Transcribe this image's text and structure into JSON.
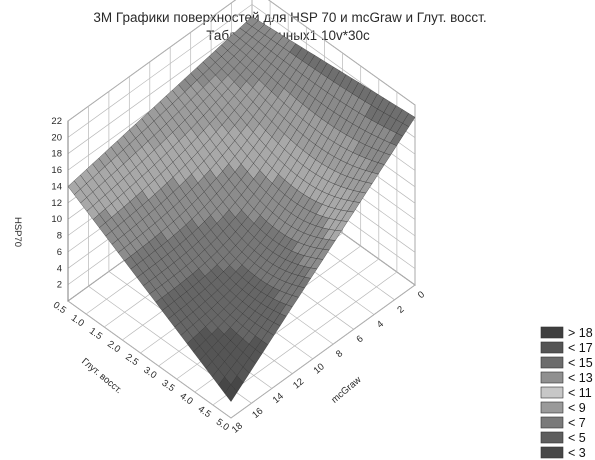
{
  "chart_data": {
    "type": "surface3d",
    "title": "3M Графики поверхностей для HSP 70 и mcGraw и Глут. восст.",
    "subtitle": "Таблица данных1 10v*30c",
    "xlabel": "mcGraw",
    "ylabel": "Глут. восст.",
    "zlabel": "HSP70",
    "x_ticks": [
      "0",
      "2",
      "4",
      "6",
      "8",
      "10",
      "12",
      "14",
      "16",
      "18"
    ],
    "y_ticks": [
      "0.5",
      "1.0",
      "1.5",
      "2.0",
      "2.5",
      "3.0",
      "3.5",
      "4.0",
      "4.5",
      "5.0"
    ],
    "z_ticks": [
      "2",
      "4",
      "6",
      "8",
      "10",
      "12",
      "14",
      "16",
      "18",
      "20",
      "22"
    ],
    "xlim": [
      0,
      18
    ],
    "ylim": [
      0.5,
      5.0
    ],
    "zlim": [
      0,
      22
    ],
    "grid": true,
    "legend_position": "bottom-right",
    "legend": [
      "> 18",
      "< 17",
      "< 15",
      "< 13",
      "< 11",
      "< 9",
      "< 7",
      "< 5",
      "< 3"
    ],
    "legend_colors": [
      "#3f3f3f",
      "#555555",
      "#6c6c6c",
      "#909090",
      "#c7c7c7",
      "#9a9a9a",
      "#7a7a7a",
      "#5e5e5e",
      "#474747"
    ],
    "corner_values": {
      "x0_y0.5": 18.5,
      "x0_y5.0": 20.5,
      "x18_y0.5": 14.0,
      "x18_y5.0": 2.0
    }
  }
}
